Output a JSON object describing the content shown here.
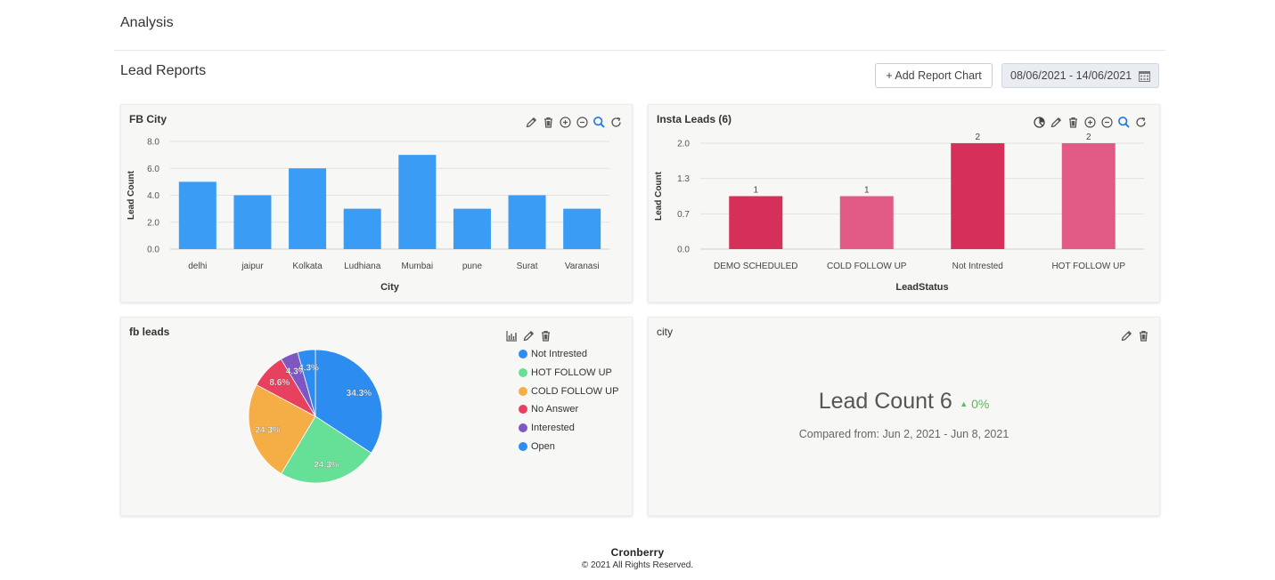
{
  "header": {
    "title": "Analysis",
    "section_title": "Lead Reports",
    "add_chart_label": "+ Add Report Chart",
    "date_range": "08/06/2021 - 14/06/2021"
  },
  "fb_city": {
    "title": "FB City",
    "icons": [
      "edit-icon",
      "trash-icon",
      "zoom-in-icon",
      "zoom-out-icon",
      "search-icon",
      "refresh-icon"
    ],
    "chart_data": {
      "type": "bar",
      "categories": [
        "delhi",
        "jaipur",
        "Kolkata",
        "Ludhiana",
        "Mumbai",
        "pune",
        "Surat",
        "Varanasi"
      ],
      "values": [
        5,
        4,
        6,
        3,
        7,
        3,
        4,
        3
      ],
      "xlabel": "City",
      "ylabel": "Lead Count",
      "yticks": [
        "0.0",
        "2.0",
        "4.0",
        "6.0",
        "8.0"
      ],
      "ylim": [
        0,
        8
      ],
      "color": "#3a9cf5",
      "grid": true
    }
  },
  "insta_leads": {
    "title": "Insta Leads (6)",
    "icons": [
      "pie-chart-icon",
      "edit-icon",
      "trash-icon",
      "zoom-in-icon",
      "zoom-out-icon",
      "search-icon",
      "refresh-icon"
    ],
    "chart_data": {
      "type": "bar",
      "categories": [
        "DEMO SCHEDULED",
        "COLD FOLLOW UP",
        "Not Intrested",
        "HOT FOLLOW UP"
      ],
      "values": [
        1,
        1,
        2,
        2
      ],
      "data_labels": [
        "1",
        "1",
        "2",
        "2"
      ],
      "colors": [
        "#d6305a",
        "#e05a85",
        "#d6305a",
        "#e05a85"
      ],
      "xlabel": "LeadStatus",
      "ylabel": "Lead Count",
      "yticks": [
        "0.0",
        "0.7",
        "1.3",
        "2.0"
      ],
      "ylim": [
        0,
        2
      ],
      "grid": true
    }
  },
  "fb_leads": {
    "title": "fb leads",
    "icons": [
      "bar-chart-icon",
      "edit-icon",
      "trash-icon"
    ],
    "chart_data": {
      "type": "pie",
      "slices": [
        {
          "label": "Not Intrested",
          "value": 34.3,
          "display": "34.3%",
          "color": "#2d8cf0"
        },
        {
          "label": "HOT FOLLOW UP",
          "value": 24.3,
          "display": "24.3%",
          "color": "#66e096"
        },
        {
          "label": "COLD FOLLOW UP",
          "value": 24.3,
          "display": "24.3%",
          "color": "#f5ad45"
        },
        {
          "label": "No Answer",
          "value": 8.6,
          "display": "8.6%",
          "color": "#e8405f"
        },
        {
          "label": "Interested",
          "value": 4.3,
          "display": "4.3%",
          "color": "#7e57c2"
        },
        {
          "label": "Open",
          "value": 4.3,
          "display": "4.3%",
          "color": "#2d8cf0"
        }
      ],
      "legend_position": "right"
    }
  },
  "city_card": {
    "title": "city",
    "icons": [
      "edit-icon",
      "trash-icon"
    ],
    "kpi_label": "Lead Count 6",
    "kpi_change": "0%",
    "kpi_compare": "Compared from: Jun 2, 2021 - Jun 8, 2021"
  },
  "footer": {
    "brand": "Cronberry",
    "copyright": "© 2021 All Rights Reserved."
  }
}
